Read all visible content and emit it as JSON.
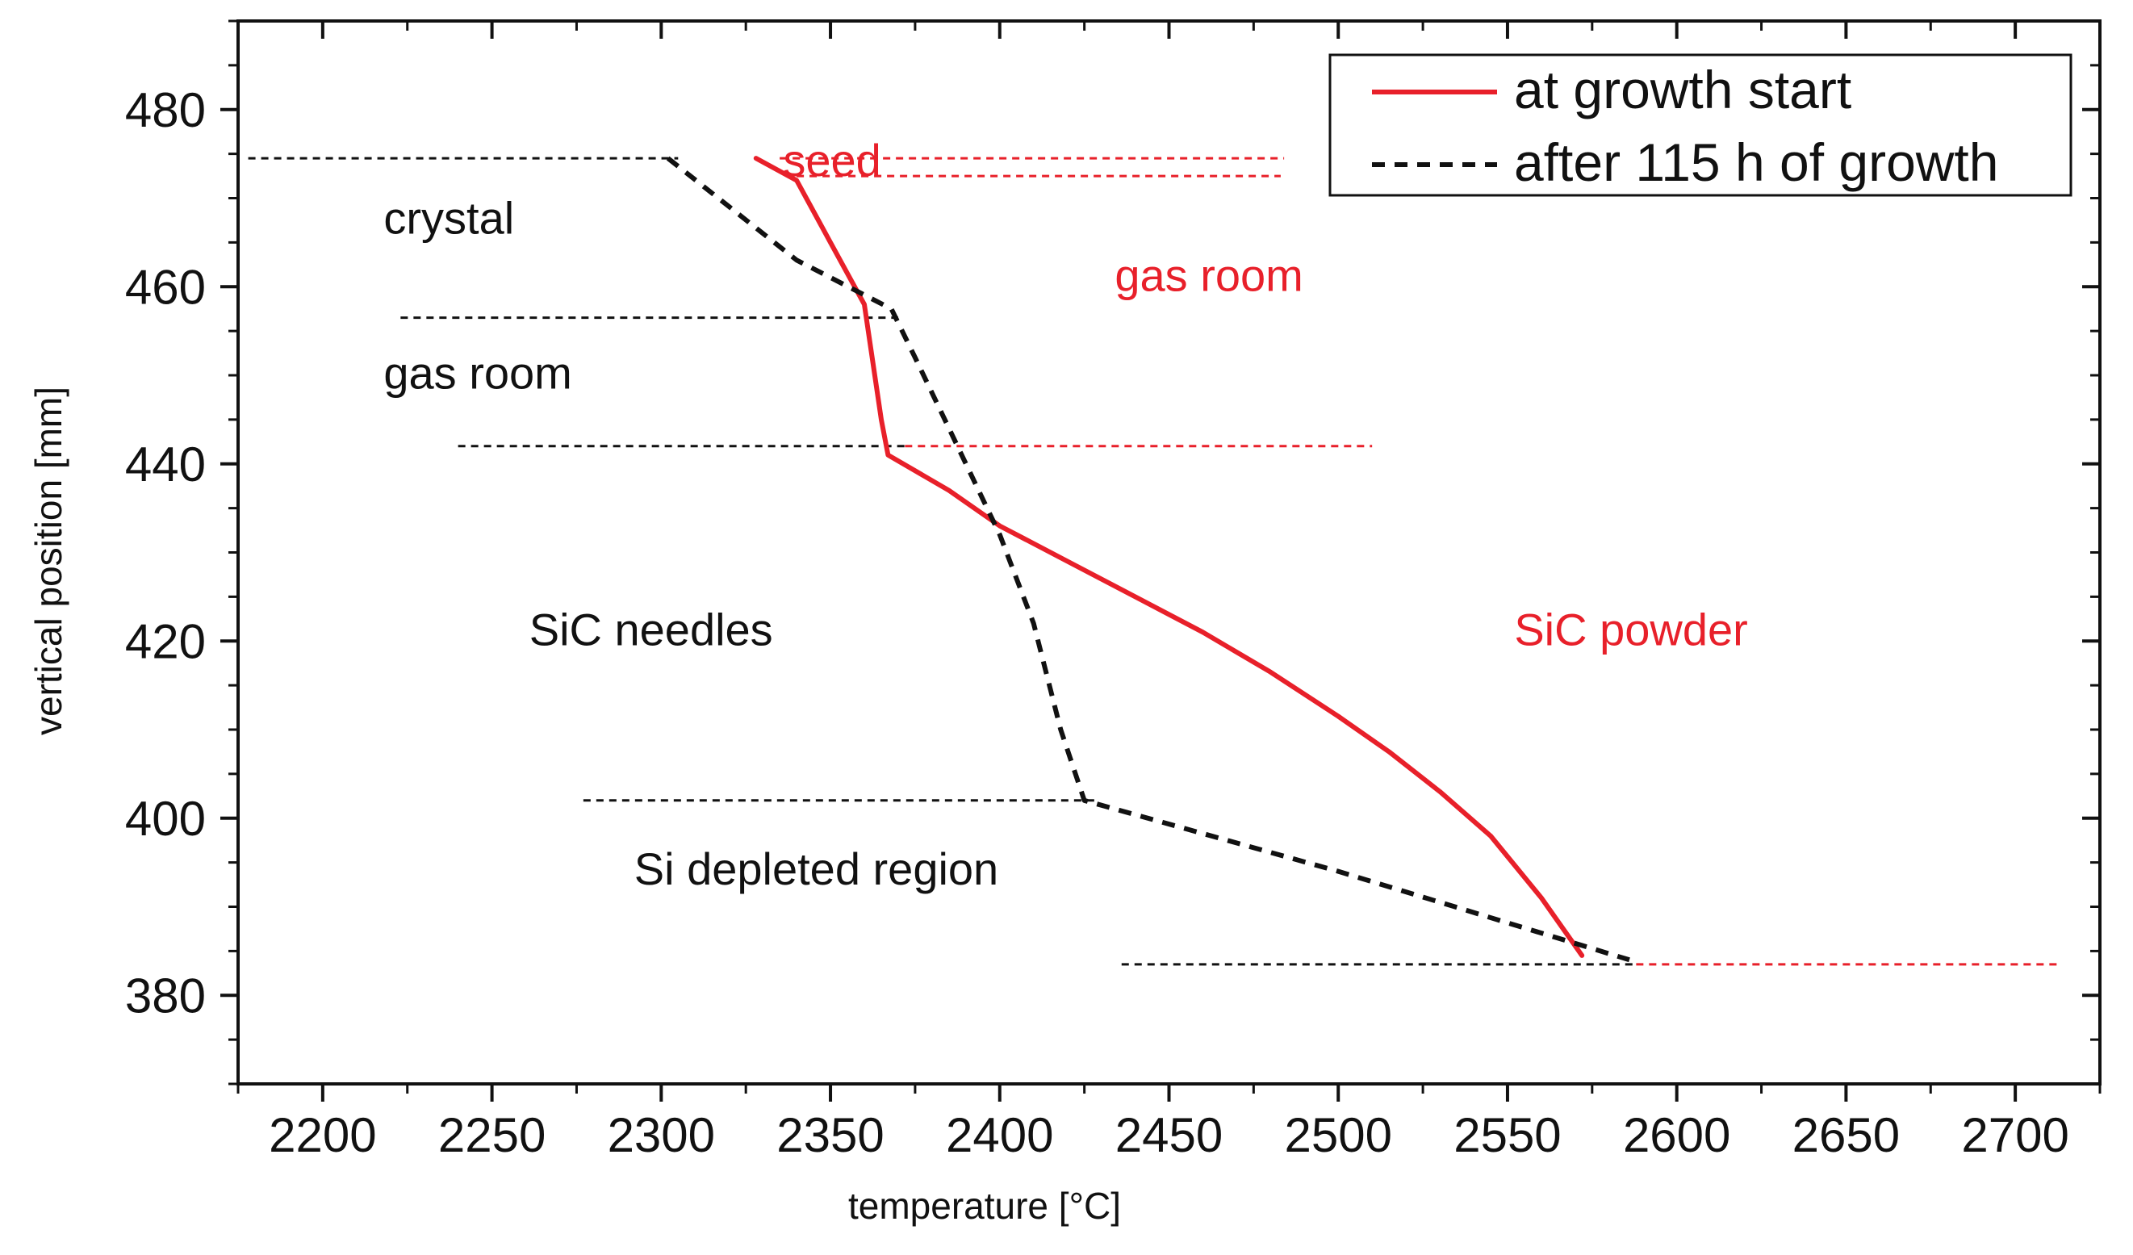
{
  "chart_data": {
    "type": "line",
    "title": "",
    "xlabel": "temperature [°C]",
    "ylabel": "vertical position [mm]",
    "xlim": [
      2175,
      2725
    ],
    "ylim": [
      370,
      490
    ],
    "xticks": [
      2200,
      2250,
      2300,
      2350,
      2400,
      2450,
      2500,
      2550,
      2600,
      2650,
      2700
    ],
    "yticks": [
      380,
      400,
      420,
      440,
      460,
      480
    ],
    "grid": false,
    "legend_position": "top-right",
    "series": [
      {
        "name": "at growth start",
        "style": "solid",
        "color": "#e8202a",
        "x": [
          2572,
          2560,
          2545,
          2530,
          2515,
          2500,
          2480,
          2460,
          2440,
          2420,
          2400,
          2385,
          2367,
          2365,
          2360,
          2350,
          2340,
          2328
        ],
        "y": [
          384.5,
          391,
          398,
          403,
          407.5,
          411.5,
          416.5,
          421,
          425,
          429,
          433,
          437,
          441,
          445,
          458,
          465,
          472,
          474.5
        ]
      },
      {
        "name": "after 115 h of growth",
        "style": "dashed",
        "color": "#111111",
        "x": [
          2302,
          2340,
          2368,
          2375,
          2385,
          2400,
          2410,
          2418,
          2425,
          2500,
          2586
        ],
        "y": [
          474.5,
          463,
          457.5,
          452,
          444,
          432,
          422,
          410,
          402,
          394,
          384
        ]
      }
    ],
    "boundaries": [
      {
        "y": 474.5,
        "x_start": 2178,
        "x_end": 2305,
        "color": "#111111"
      },
      {
        "y": 474.5,
        "x_start": 2335,
        "x_end": 2484,
        "color": "#e8202a"
      },
      {
        "y": 472.5,
        "x_start": 2340,
        "x_end": 2483,
        "color": "#e8202a"
      },
      {
        "y": 456.5,
        "x_start": 2223,
        "x_end": 2370,
        "color": "#111111"
      },
      {
        "y": 442,
        "x_start": 2240,
        "x_end": 2372,
        "color": "#111111"
      },
      {
        "y": 442,
        "x_start": 2372,
        "x_end": 2510,
        "color": "#e8202a"
      },
      {
        "y": 402,
        "x_start": 2277,
        "x_end": 2428,
        "color": "#111111"
      },
      {
        "y": 383.5,
        "x_start": 2436,
        "x_end": 2588,
        "color": "#111111"
      },
      {
        "y": 383.5,
        "x_start": 2588,
        "x_end": 2713,
        "color": "#e8202a"
      }
    ],
    "annotations": [
      {
        "text": "seed",
        "x": 2336,
        "y": 472.5,
        "color": "#e8202a"
      },
      {
        "text": "gas room",
        "x": 2434,
        "y": 459.5,
        "color": "#e8202a"
      },
      {
        "text": "SiC powder",
        "x": 2552,
        "y": 419.5,
        "color": "#e8202a"
      },
      {
        "text": "crystal",
        "x": 2218,
        "y": 466,
        "color": "#111111"
      },
      {
        "text": "gas room",
        "x": 2218,
        "y": 448.5,
        "color": "#111111"
      },
      {
        "text": "SiC needles",
        "x": 2261,
        "y": 419.5,
        "color": "#111111"
      },
      {
        "text": "Si depleted region",
        "x": 2292,
        "y": 392.5,
        "color": "#111111"
      }
    ]
  }
}
